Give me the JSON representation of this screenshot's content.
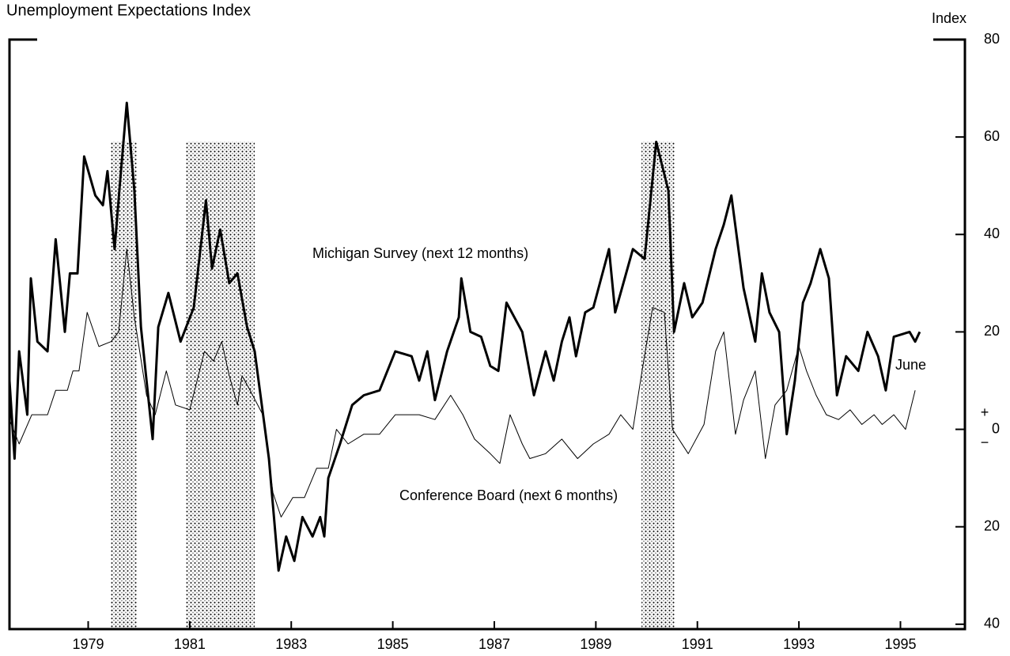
{
  "chart_data": {
    "type": "line",
    "title": "Unemployment Expectations Index",
    "y_axis_label": "Index",
    "annotations": [
      "Michigan Survey (next 12 months)",
      "Conference Board (next 6 months)",
      "June",
      "+",
      "−"
    ],
    "xlim": [
      1977.95,
      1996.77
    ],
    "ylim": [
      -41,
      80
    ],
    "xticks": [
      {
        "value": 1979.5,
        "label": "1979"
      },
      {
        "value": 1981.5,
        "label": "1981"
      },
      {
        "value": 1983.5,
        "label": "1983"
      },
      {
        "value": 1985.5,
        "label": "1985"
      },
      {
        "value": 1987.5,
        "label": "1987"
      },
      {
        "value": 1989.5,
        "label": "1989"
      },
      {
        "value": 1991.5,
        "label": "1991"
      },
      {
        "value": 1993.5,
        "label": "1993"
      },
      {
        "value": 1995.5,
        "label": "1995"
      }
    ],
    "yticks": [
      80,
      60,
      40,
      20,
      0,
      {
        "value": -20,
        "label": "20"
      },
      {
        "value": -40,
        "label": "40"
      }
    ],
    "recessions": [
      [
        1979.95,
        1980.46
      ],
      [
        1981.43,
        1982.78
      ],
      [
        1990.4,
        1991.05
      ]
    ],
    "recession_top": 59,
    "series": [
      {
        "name": "Michigan Survey (next 12 months)",
        "color": "#000000",
        "width": 3,
        "x": [
          1977.95,
          1978.05,
          1978.14,
          1978.3,
          1978.37,
          1978.5,
          1978.7,
          1978.86,
          1979.04,
          1979.14,
          1979.29,
          1979.42,
          1979.64,
          1979.79,
          1979.88,
          1980.02,
          1980.13,
          1980.26,
          1980.41,
          1980.54,
          1980.77,
          1980.88,
          1981.08,
          1981.32,
          1981.58,
          1981.82,
          1981.94,
          1982.1,
          1982.28,
          1982.44,
          1982.63,
          1982.78,
          1983.06,
          1983.25,
          1983.4,
          1983.56,
          1983.72,
          1983.92,
          1984.07,
          1984.15,
          1984.23,
          1984.46,
          1984.7,
          1984.93,
          1985.24,
          1985.55,
          1985.87,
          1986.02,
          1986.18,
          1986.33,
          1986.57,
          1986.8,
          1986.85,
          1987.03,
          1987.24,
          1987.42,
          1987.58,
          1987.74,
          1988.05,
          1988.28,
          1988.51,
          1988.67,
          1988.83,
          1988.98,
          1989.11,
          1989.29,
          1989.45,
          1989.76,
          1989.88,
          1990.07,
          1990.23,
          1990.46,
          1990.69,
          1990.93,
          1991.04,
          1991.24,
          1991.4,
          1991.6,
          1991.86,
          1992.02,
          1992.17,
          1992.41,
          1992.64,
          1992.77,
          1992.92,
          1993.11,
          1993.26,
          1993.42,
          1993.58,
          1993.73,
          1993.92,
          1994.09,
          1994.25,
          1994.43,
          1994.67,
          1994.85,
          1995.06,
          1995.21,
          1995.37,
          1995.68,
          1995.79,
          1995.88
        ],
        "values": [
          10,
          -6,
          16,
          3,
          31,
          18,
          16,
          39,
          20,
          32,
          32,
          56,
          48,
          46,
          53,
          37,
          51,
          67,
          49,
          21,
          -2,
          21,
          28,
          18,
          25,
          47,
          33,
          41,
          30,
          32,
          21,
          16,
          -6,
          -29,
          -22,
          -27,
          -18,
          -22,
          -18,
          -22,
          -10,
          -3,
          5,
          7,
          8,
          16,
          15,
          10,
          16,
          6,
          16,
          23,
          31,
          20,
          19,
          13,
          12,
          26,
          20,
          7,
          16,
          10,
          18,
          23,
          15,
          24,
          25,
          37,
          24,
          31,
          37,
          35,
          59,
          49,
          20,
          30,
          23,
          26,
          37,
          42,
          48,
          29,
          18,
          32,
          24,
          20,
          -1,
          10,
          26,
          30,
          37,
          31,
          7,
          15,
          12,
          20,
          15,
          8,
          19,
          20,
          18,
          20
        ]
      },
      {
        "name": "Conference Board (next 6 months)",
        "color": "#000000",
        "width": 1,
        "x": [
          1977.95,
          1978.14,
          1978.39,
          1978.7,
          1978.86,
          1979.09,
          1979.2,
          1979.32,
          1979.48,
          1979.71,
          1979.95,
          1980.1,
          1980.26,
          1980.41,
          1980.65,
          1980.82,
          1981.04,
          1981.22,
          1981.5,
          1981.79,
          1981.97,
          1982.13,
          1982.28,
          1982.44,
          1982.53,
          1982.69,
          1982.94,
          1983.14,
          1983.3,
          1983.53,
          1983.76,
          1984.0,
          1984.23,
          1984.39,
          1984.62,
          1984.93,
          1985.24,
          1985.55,
          1986.02,
          1986.33,
          1986.64,
          1986.88,
          1987.11,
          1987.42,
          1987.61,
          1987.81,
          1988.05,
          1988.2,
          1988.51,
          1988.83,
          1989.14,
          1989.45,
          1989.76,
          1989.99,
          1990.23,
          1990.41,
          1990.62,
          1990.85,
          1991.01,
          1991.32,
          1991.63,
          1991.86,
          1992.02,
          1992.25,
          1992.41,
          1992.64,
          1992.84,
          1993.03,
          1993.26,
          1993.5,
          1993.65,
          1993.84,
          1994.04,
          1994.28,
          1994.51,
          1994.74,
          1994.98,
          1995.14,
          1995.37,
          1995.6,
          1995.79
        ],
        "values": [
          2,
          -3,
          3,
          3,
          8,
          8,
          12,
          12,
          24,
          17,
          18,
          20,
          37,
          23,
          7,
          3,
          12,
          5,
          4,
          16,
          14,
          18,
          11,
          5,
          11,
          8,
          3,
          -13,
          -18,
          -14,
          -14,
          -8,
          -8,
          0,
          -3,
          -1,
          -1,
          3,
          3,
          2,
          7,
          3,
          -2,
          -5,
          -7,
          3,
          -3,
          -6,
          -5,
          -2,
          -6,
          -3,
          -1,
          3,
          0,
          12,
          25,
          24,
          0,
          -5,
          1,
          16,
          20,
          -1,
          6,
          12,
          -6,
          5,
          8,
          17,
          12,
          7,
          3,
          2,
          4,
          1,
          3,
          1,
          3,
          0,
          8
        ]
      }
    ]
  }
}
